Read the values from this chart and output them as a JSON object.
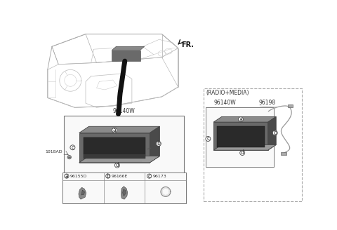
{
  "bg_color": "#ffffff",
  "fig_width": 4.8,
  "fig_height": 3.28,
  "dpi": 100,
  "labels": {
    "fr_label": "FR.",
    "radio_media": "(RADIO+MEDIA)",
    "part_left": "96140W",
    "part_left2": "96140W",
    "part_right_cable": "96198",
    "bolt_label": "1018AD",
    "sub_a": "96155D",
    "sub_b": "96166E",
    "sub_c": "96173"
  },
  "colors": {
    "box_border": "#777777",
    "dashed_border": "#999999",
    "text": "#333333",
    "unit_front": "#6a6a6a",
    "unit_top": "#909090",
    "unit_side": "#505050",
    "unit_bracket": "#888888",
    "screen_dark": "#2a2a2a",
    "circle_fill": "#ffffff",
    "circle_border": "#444444",
    "cable_color": "#999999",
    "line_color": "#888888"
  }
}
